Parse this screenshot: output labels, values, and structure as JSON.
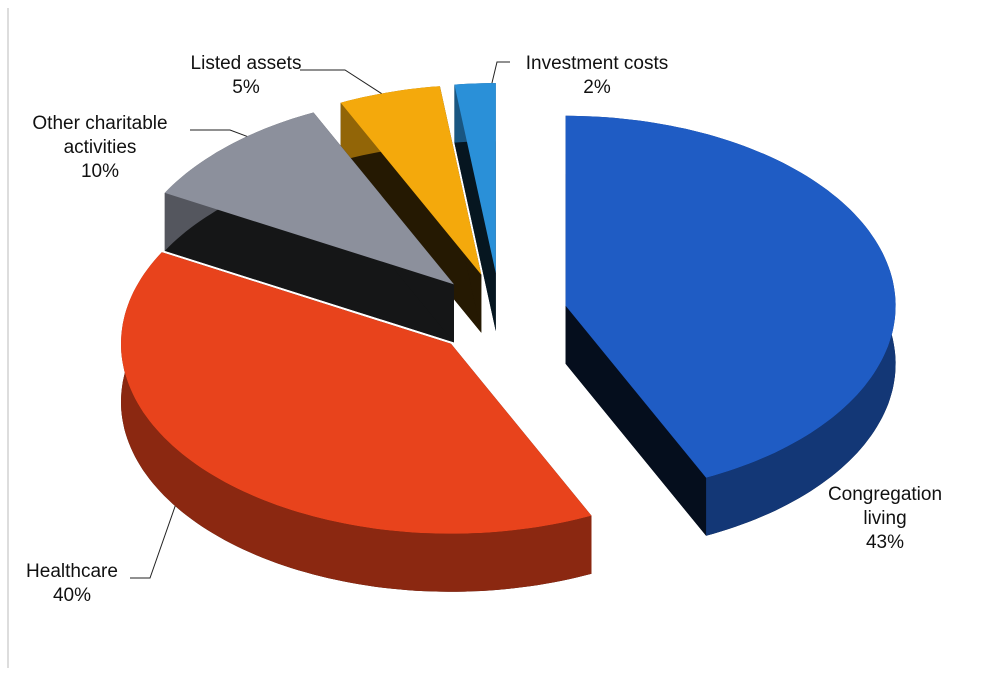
{
  "chart_data": {
    "type": "pie",
    "categories": [
      "Congregation living",
      "Healthcare",
      "Other charitable activities",
      "Listed assets",
      "Investment costs"
    ],
    "values": [
      43,
      40,
      10,
      5,
      2
    ],
    "value_labels": [
      "43%",
      "40%",
      "10%",
      "5%",
      "2%"
    ],
    "colors": [
      "#1f5cc4",
      "#e8431c",
      "#8c909c",
      "#f4a90c",
      "#2a90d8"
    ],
    "three_d": true,
    "exploded": true
  }
}
